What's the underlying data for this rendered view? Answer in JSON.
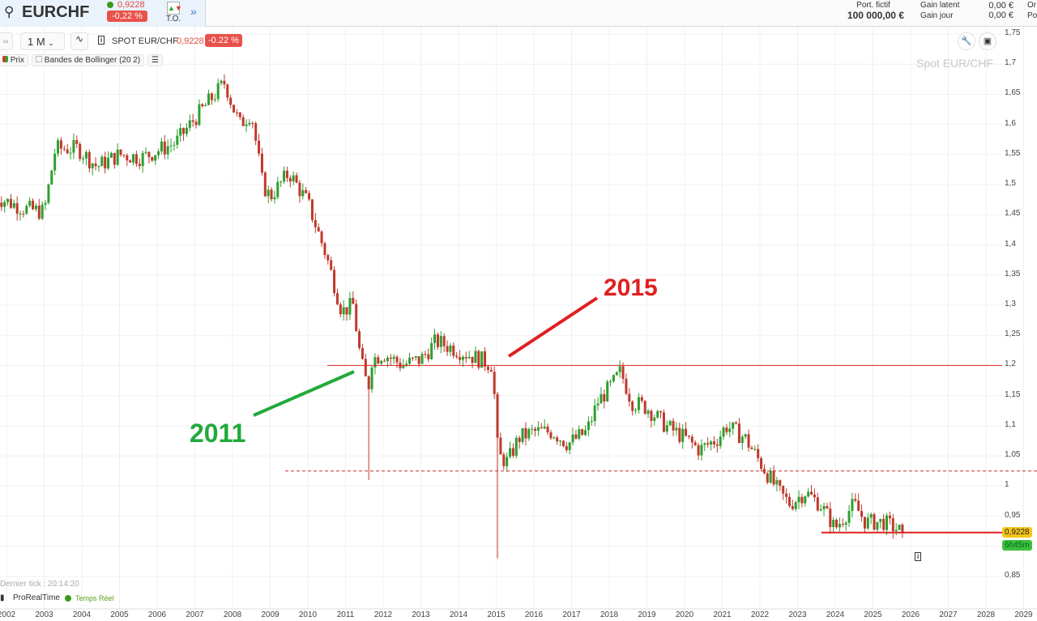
{
  "header": {
    "symbol": "EURCHF",
    "price": "0,9228",
    "change": "-0,22 %",
    "to_label": "T.O.",
    "more_icon": "double-chevron-right-icon",
    "portfolio_label": "Port. fictif",
    "portfolio_value": "100 000,00 €",
    "gain_latent_label": "Gain latent",
    "gain_latent_value": "0,00 €",
    "gain_jour_label": "Gain jour",
    "gain_jour_value": "0,00 €",
    "cut_1": "Or",
    "cut_2": "Po"
  },
  "toolbar": {
    "period": "1 M",
    "instrument": "SPOT EUR/CHF",
    "price": "0,9228",
    "change": "-0.22 %",
    "legend_price": "Prix",
    "legend_bollinger": "Bandes de Bollinger (20 2)"
  },
  "footer": {
    "last_tick": "Dernier tick : 20:14:20",
    "brand": "ProRealTime",
    "realtime": "Temps Réel"
  },
  "colors": {
    "up": "#2f9e2f",
    "down": "#c0392b",
    "annotation_red": "#e02020",
    "annotation_green": "#22aa3a",
    "price_tag": "#f5c518",
    "timer_tag": "#3cbf3c"
  },
  "chart_data": {
    "type": "candlestick",
    "title": "Spot EUR/CHF",
    "interval": "1 M",
    "ylim": [
      0.85,
      1.75
    ],
    "y_ticks": [
      "1,75",
      "1,7",
      "1,65",
      "1,6",
      "1,55",
      "1,5",
      "1,45",
      "1,4",
      "1,35",
      "1,3",
      "1,25",
      "1,2",
      "1,15",
      "1,1",
      "1,05",
      "1",
      "0,95",
      "0,85"
    ],
    "x_ticks": [
      "2002",
      "2003",
      "2004",
      "2005",
      "2006",
      "2007",
      "2008",
      "2009",
      "2010",
      "2011",
      "2012",
      "2013",
      "2014",
      "2015",
      "2016",
      "2017",
      "2018",
      "2019",
      "2020",
      "2021",
      "2022",
      "2023",
      "2024",
      "2025",
      "2026",
      "2027",
      "2028",
      "2029"
    ],
    "grid": true,
    "approx_close_path": [
      [
        2001.7,
        1.48
      ],
      [
        2002.5,
        1.46
      ],
      [
        2003.0,
        1.455
      ],
      [
        2003.3,
        1.56
      ],
      [
        2003.9,
        1.56
      ],
      [
        2004.4,
        1.53
      ],
      [
        2005.0,
        1.55
      ],
      [
        2005.6,
        1.545
      ],
      [
        2006.5,
        1.57
      ],
      [
        2007.0,
        1.61
      ],
      [
        2007.8,
        1.67
      ],
      [
        2008.0,
        1.63
      ],
      [
        2008.2,
        1.6
      ],
      [
        2008.5,
        1.62
      ],
      [
        2008.8,
        1.5
      ],
      [
        2009.0,
        1.48
      ],
      [
        2009.5,
        1.52
      ],
      [
        2010.0,
        1.47
      ],
      [
        2010.5,
        1.38
      ],
      [
        2010.9,
        1.29
      ],
      [
        2011.2,
        1.3
      ],
      [
        2011.4,
        1.21
      ],
      [
        2011.6,
        1.16
      ],
      [
        2011.7,
        1.21
      ],
      [
        2012.0,
        1.22
      ],
      [
        2012.5,
        1.201
      ],
      [
        2013.0,
        1.21
      ],
      [
        2013.4,
        1.24
      ],
      [
        2014.0,
        1.225
      ],
      [
        2014.9,
        1.201
      ],
      [
        2015.05,
        1.05
      ],
      [
        2015.3,
        1.04
      ],
      [
        2015.6,
        1.08
      ],
      [
        2016.0,
        1.09
      ],
      [
        2016.5,
        1.09
      ],
      [
        2016.9,
        1.07
      ],
      [
        2017.4,
        1.09
      ],
      [
        2017.7,
        1.14
      ],
      [
        2018.1,
        1.17
      ],
      [
        2018.3,
        1.19
      ],
      [
        2018.6,
        1.14
      ],
      [
        2019.0,
        1.13
      ],
      [
        2019.5,
        1.1
      ],
      [
        2020.0,
        1.08
      ],
      [
        2020.4,
        1.06
      ],
      [
        2020.9,
        1.08
      ],
      [
        2021.1,
        1.1
      ],
      [
        2021.6,
        1.08
      ],
      [
        2022.0,
        1.04
      ],
      [
        2022.5,
        0.99
      ],
      [
        2022.8,
        0.97
      ],
      [
        2023.2,
        0.99
      ],
      [
        2023.6,
        0.97
      ],
      [
        2024.0,
        0.93
      ],
      [
        2024.5,
        0.97
      ],
      [
        2024.8,
        0.94
      ],
      [
        2025.3,
        0.94
      ],
      [
        2025.8,
        0.9228
      ]
    ],
    "extreme_wicks": [
      [
        2007.8,
        1.68
      ],
      [
        2011.6,
        1.01
      ],
      [
        2015.05,
        0.88
      ],
      [
        2018.3,
        1.2
      ]
    ],
    "last_price": "0,9228",
    "timer": "6h45m",
    "levels": [
      {
        "value": 1.2,
        "style": "solid",
        "color": "#e02020"
      },
      {
        "value": 1.025,
        "style": "dashed",
        "color": "#c03030"
      },
      {
        "value": 0.9228,
        "style": "solid",
        "color": "#e02020"
      }
    ],
    "annotations": [
      {
        "text": "2011",
        "color": "#22aa3a"
      },
      {
        "text": "2015",
        "color": "#e02020"
      }
    ]
  }
}
